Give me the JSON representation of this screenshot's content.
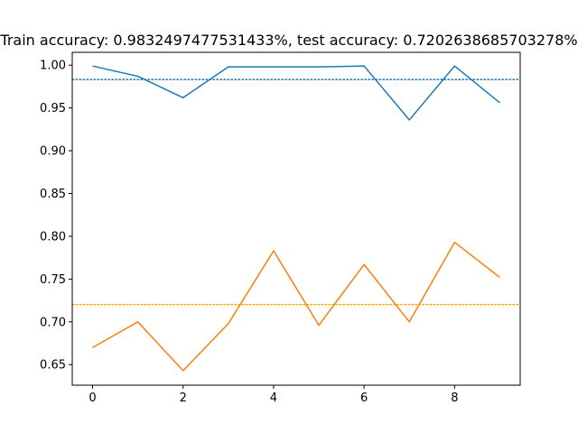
{
  "chart_data": {
    "type": "line",
    "title": "Train accuracy: 0.9832497477531433%, test accuracy: 0.7202638685703278%",
    "xlabel": "",
    "ylabel": "",
    "x": [
      0,
      1,
      2,
      3,
      4,
      5,
      6,
      7,
      8,
      9
    ],
    "xlim": [
      -0.45,
      9.45
    ],
    "ylim": [
      0.626,
      1.015
    ],
    "xticks": [
      0,
      2,
      4,
      6,
      8
    ],
    "yticks": [
      0.65,
      0.7,
      0.75,
      0.8,
      0.85,
      0.9,
      0.95,
      1.0
    ],
    "ytick_labels": [
      "0.65",
      "0.70",
      "0.75",
      "0.80",
      "0.85",
      "0.90",
      "0.95",
      "1.00"
    ],
    "grid": false,
    "series": [
      {
        "values": [
          0.999,
          0.987,
          0.962,
          0.998,
          0.998,
          0.998,
          0.999,
          0.936,
          0.999,
          0.956
        ],
        "color": "#1f77b4",
        "style": "solid"
      },
      {
        "values": [
          0.67,
          0.7,
          0.643,
          0.698,
          0.783,
          0.696,
          0.767,
          0.7,
          0.793,
          0.752
        ],
        "color": "#ff7f0e",
        "style": "solid"
      }
    ],
    "hlines": [
      {
        "value": 0.9832497477531433,
        "color": "#1f77b4",
        "style": "dotted"
      },
      {
        "value": 0.7202638685703278,
        "color": "#ffa500",
        "style": "dotted"
      }
    ]
  }
}
